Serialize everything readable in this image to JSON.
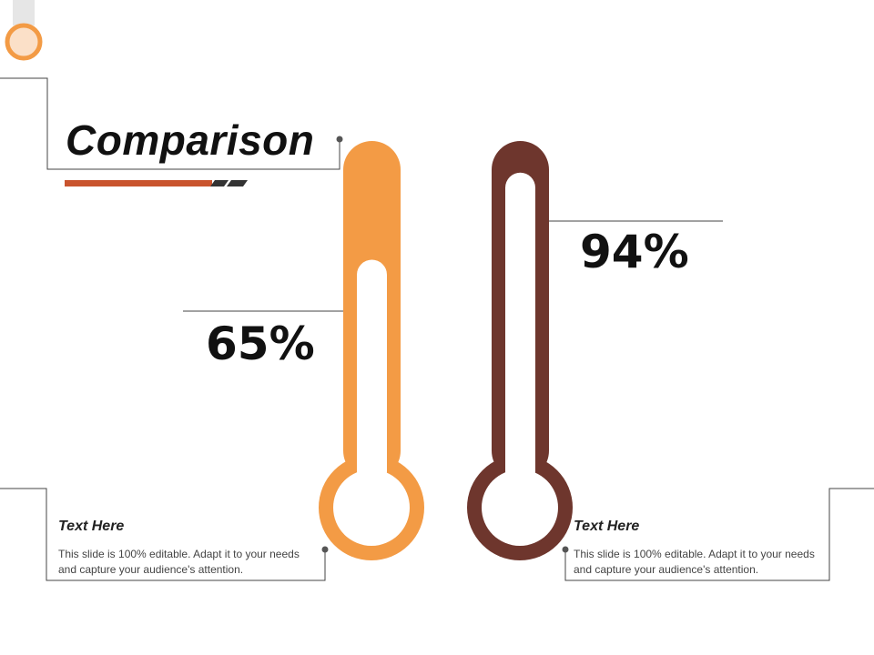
{
  "title": "Comparison",
  "colors": {
    "orange": "#F39B45",
    "brown": "#6E362D",
    "accent_red": "#C9542E",
    "dark": "#333333",
    "line": "#444444",
    "corner_fill": "#FBE0C8"
  },
  "thermometers": [
    {
      "name": "left-thermometer",
      "percent_label": "65%",
      "fill_fraction": 0.65,
      "color": "#F39B45"
    },
    {
      "name": "right-thermometer",
      "percent_label": "94%",
      "fill_fraction": 0.94,
      "color": "#6E362D"
    }
  ],
  "cards": [
    {
      "heading": "Text Here",
      "body": "This slide is 100% editable. Adapt it to your needs and capture your audience's attention."
    },
    {
      "heading": "Text Here",
      "body": "This slide is 100% editable. Adapt it to your needs and capture your audience's attention."
    }
  ]
}
